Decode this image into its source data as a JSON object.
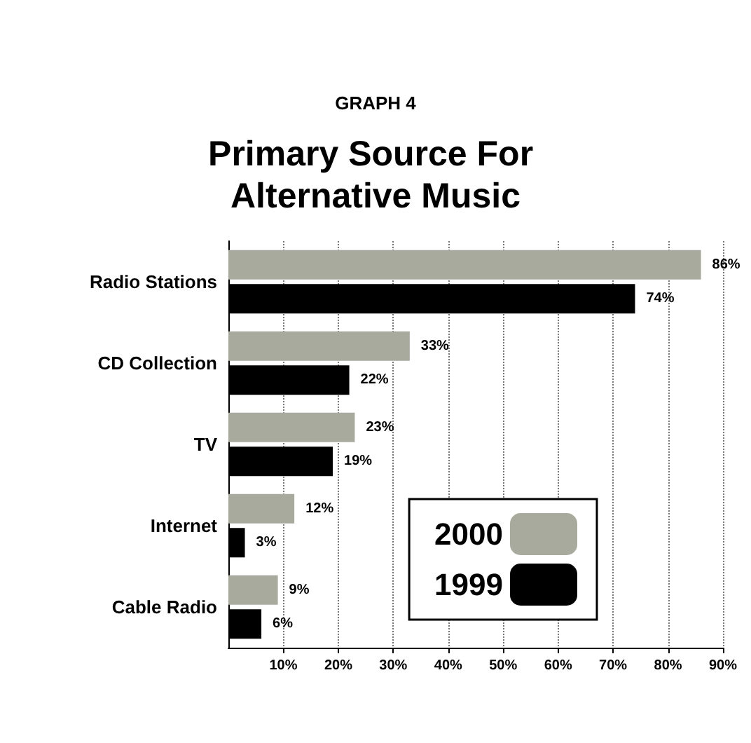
{
  "chart_data": {
    "type": "bar",
    "orientation": "horizontal",
    "subtitle": "GRAPH 4",
    "title": "Primary Source For Alternative Music",
    "categories": [
      "Radio Stations",
      "CD Collection",
      "TV",
      "Internet",
      "Cable Radio"
    ],
    "series": [
      {
        "name": "2000",
        "color": "#a8aa9e",
        "values": [
          86,
          33,
          23,
          12,
          9
        ],
        "value_labels": [
          "86%",
          "33%",
          "23%",
          "12%",
          "9%"
        ]
      },
      {
        "name": "1999",
        "color": "#000000",
        "values": [
          74,
          22,
          19,
          3,
          6
        ],
        "value_labels": [
          "74%",
          "22%",
          "19%",
          "3%",
          "6%"
        ]
      }
    ],
    "xlim": [
      0,
      90
    ],
    "xticks": [
      {
        "value": 10,
        "label": "10%"
      },
      {
        "value": 20,
        "label": "20%"
      },
      {
        "value": 30,
        "label": "30%"
      },
      {
        "value": 40,
        "label": "40%"
      },
      {
        "value": 50,
        "label": "50%"
      },
      {
        "value": 60,
        "label": "60%"
      },
      {
        "value": 70,
        "label": "70%"
      },
      {
        "value": 80,
        "label": "80%"
      },
      {
        "value": 90,
        "label": "90%"
      }
    ],
    "grid": "x",
    "legend": "bottom right"
  }
}
